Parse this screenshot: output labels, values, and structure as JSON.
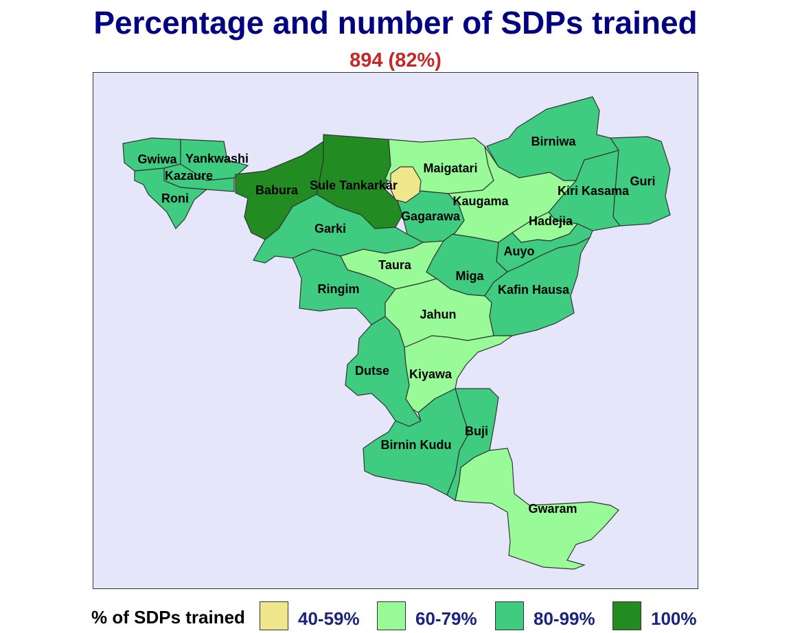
{
  "title": "Percentage and number of SDPs trained",
  "subtitle": "894 (82%)",
  "colors": {
    "background": "#e6e6fa",
    "band_40_59": "#f0e68c",
    "band_60_79": "#98fb98",
    "band_80_99": "#3fcc80",
    "band_100": "#228b22"
  },
  "legend": {
    "title": "% of SDPs trained",
    "items": [
      {
        "label": "40-59%",
        "color": "#f0e68c"
      },
      {
        "label": "60-79%",
        "color": "#98fb98"
      },
      {
        "label": "80-99%",
        "color": "#3fcc80"
      },
      {
        "label": "100%",
        "color": "#228b22"
      }
    ]
  },
  "regions": [
    {
      "name": "Gwiwa",
      "band": "80-99%"
    },
    {
      "name": "Yankwashi",
      "band": "80-99%"
    },
    {
      "name": "Kazaure",
      "band": "80-99%"
    },
    {
      "name": "Roni",
      "band": "80-99%"
    },
    {
      "name": "Babura",
      "band": "100%"
    },
    {
      "name": "Sule Tankarkar",
      "band": "100%"
    },
    {
      "name": "Maigatari",
      "band": "60-79%"
    },
    {
      "name": "Birniwa",
      "band": "80-99%"
    },
    {
      "name": "Guri",
      "band": "80-99%"
    },
    {
      "name": "Kiri Kasama",
      "band": "80-99%"
    },
    {
      "name": "Kaugama",
      "band": "60-79%"
    },
    {
      "name": "Gagarawa",
      "band": "80-99%"
    },
    {
      "name": "Garki",
      "band": "80-99%"
    },
    {
      "name": "Hadejia",
      "band": "60-79%"
    },
    {
      "name": "Auyo",
      "band": "80-99%"
    },
    {
      "name": "Taura",
      "band": "60-79%"
    },
    {
      "name": "Miga",
      "band": "80-99%"
    },
    {
      "name": "Ringim",
      "band": "80-99%"
    },
    {
      "name": "Kafin Hausa",
      "band": "80-99%"
    },
    {
      "name": "Jahun",
      "band": "60-79%"
    },
    {
      "name": "Dutse",
      "band": "80-99%"
    },
    {
      "name": "Kiyawa",
      "band": "60-79%"
    },
    {
      "name": "Buji",
      "band": "80-99%"
    },
    {
      "name": "Birnin Kudu",
      "band": "80-99%"
    },
    {
      "name": "Gwaram",
      "band": "60-79%"
    },
    {
      "name": "",
      "band": "40-59%"
    }
  ]
}
